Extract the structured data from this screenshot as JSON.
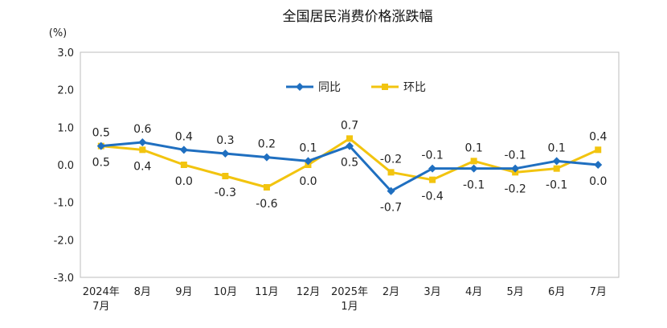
{
  "chart_data": {
    "type": "line",
    "title": "全国居民消费价格涨跌幅",
    "unit": "(%)",
    "categories": [
      [
        "2024年",
        "7月"
      ],
      [
        "8月"
      ],
      [
        "9月"
      ],
      [
        "10月"
      ],
      [
        "11月"
      ],
      [
        "12月"
      ],
      [
        "2025年",
        "1月"
      ],
      [
        "2月"
      ],
      [
        "3月"
      ],
      [
        "4月"
      ],
      [
        "5月"
      ],
      [
        "6月"
      ],
      [
        "7月"
      ]
    ],
    "ylim": [
      -3.0,
      3.0
    ],
    "yticks": [
      "3.0",
      "2.0",
      "1.0",
      "0.0",
      "-1.0",
      "-2.0",
      "-3.0"
    ],
    "legend_position": "top-center",
    "series": [
      {
        "name": "同比",
        "color": "#1f6fc0",
        "marker": "diamond",
        "values": [
          0.5,
          0.6,
          0.4,
          0.3,
          0.2,
          0.1,
          0.5,
          -0.7,
          -0.1,
          -0.1,
          -0.1,
          0.1,
          0.0
        ],
        "labels": [
          "0.5",
          "0.6",
          "0.4",
          "0.3",
          "0.2",
          "0.1",
          "0.5",
          "-0.7",
          "-0.1",
          "-0.1",
          "-0.1",
          "0.1",
          "0.0"
        ]
      },
      {
        "name": "环比",
        "color": "#f2c40f",
        "marker": "square",
        "values": [
          0.5,
          0.4,
          0.0,
          -0.3,
          -0.6,
          0.0,
          0.7,
          -0.2,
          -0.4,
          0.1,
          -0.2,
          -0.1,
          0.4
        ],
        "labels": [
          "0.5",
          "0.4",
          "0.0",
          "-0.3",
          "-0.6",
          "0.0",
          "0.7",
          "-0.2",
          "-0.4",
          "0.1",
          "-0.2",
          "-0.1",
          "0.4"
        ]
      }
    ]
  }
}
